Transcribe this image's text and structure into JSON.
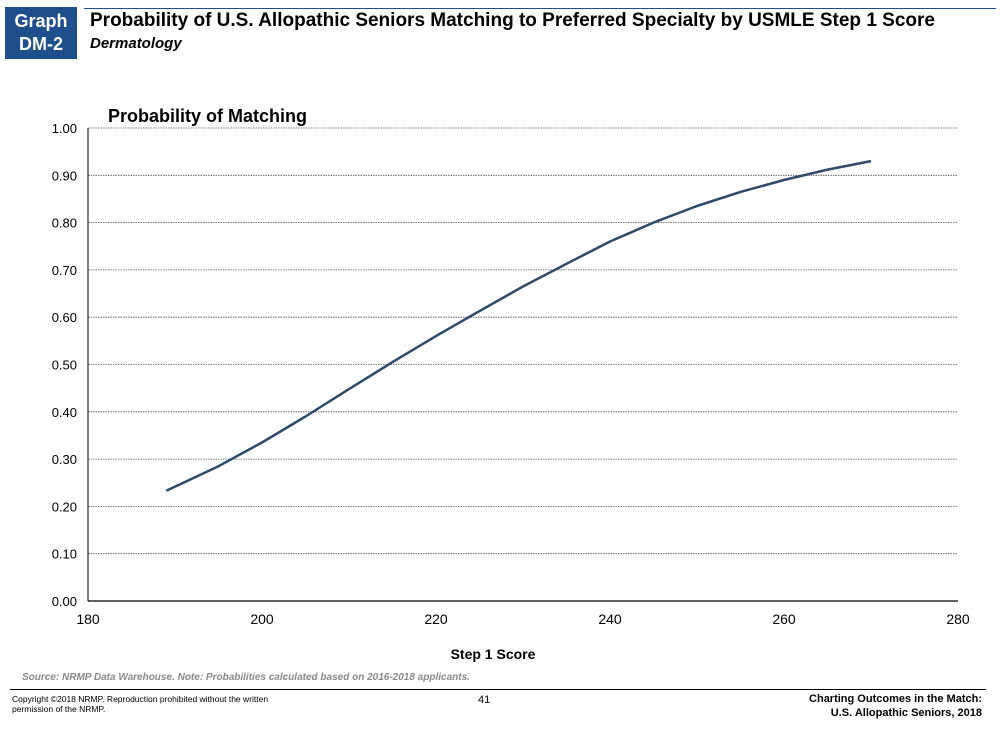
{
  "header": {
    "badge_line1": "Graph",
    "badge_line2": "DM-2",
    "title": "Probability of U.S. Allopathic Seniors Matching to Preferred Specialty by USMLE Step 1 Score",
    "subtitle": "Dermatology",
    "badge_color": "#1f4e8c"
  },
  "chart_data": {
    "type": "line",
    "title": "Probability of Matching",
    "xlabel": "Step 1 Score",
    "ylabel": "",
    "xlim": [
      180,
      280
    ],
    "ylim": [
      0.0,
      1.0
    ],
    "x_ticks": [
      "180",
      "200",
      "220",
      "240",
      "260",
      "280"
    ],
    "y_ticks": [
      "0.00",
      "0.10",
      "0.20",
      "0.30",
      "0.40",
      "0.50",
      "0.60",
      "0.70",
      "0.80",
      "0.90",
      "1.00"
    ],
    "grid": true,
    "series": [
      {
        "color": "#2e4a6b",
        "x": [
          189,
          195,
          200,
          205,
          210,
          215,
          220,
          225,
          230,
          235,
          240,
          245,
          250,
          255,
          260,
          265,
          270
        ],
        "y": [
          0.233,
          0.285,
          0.335,
          0.39,
          0.448,
          0.505,
          0.56,
          0.613,
          0.665,
          0.713,
          0.76,
          0.8,
          0.835,
          0.865,
          0.89,
          0.912,
          0.93
        ]
      }
    ]
  },
  "footer": {
    "source": "Source: NRMP Data Warehouse. Note: Probabilities calculated based on 2016-2018 applicants.",
    "copyright": "Copyright ©2018 NRMP. Reproduction prohibited without the written permission of the NRMP.",
    "page_number": "41",
    "title_line1": "Charting Outcomes in the Match:",
    "title_line2": "U.S. Allopathic Seniors, 2018"
  }
}
